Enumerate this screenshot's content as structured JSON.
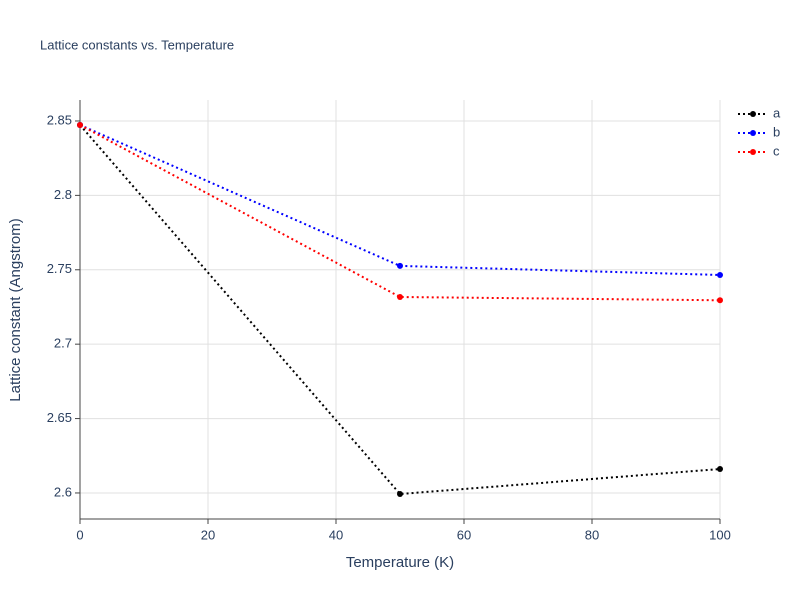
{
  "chart_data": {
    "type": "line",
    "title": "Lattice constants vs. Temperature",
    "x_label": "Temperature (K)",
    "y_label": "Lattice constant (Angstrom)",
    "x": [
      0,
      50,
      100
    ],
    "series": [
      {
        "name": "a",
        "color": "#000000",
        "values": [
          2.8473,
          2.5993,
          2.6161
        ]
      },
      {
        "name": "b",
        "color": "#0000ff",
        "values": [
          2.8473,
          2.7526,
          2.7465
        ]
      },
      {
        "name": "c",
        "color": "#ff0000",
        "values": [
          2.8473,
          2.7317,
          2.7295
        ]
      }
    ],
    "xlim": [
      0,
      100
    ],
    "xticks": [
      0,
      20,
      40,
      60,
      80,
      100
    ],
    "ylim": [
      2.5825,
      2.8641
    ],
    "yticks": [
      2.6,
      2.65,
      2.7,
      2.75,
      2.8,
      2.85
    ],
    "grid": true,
    "legend": "top-right"
  }
}
